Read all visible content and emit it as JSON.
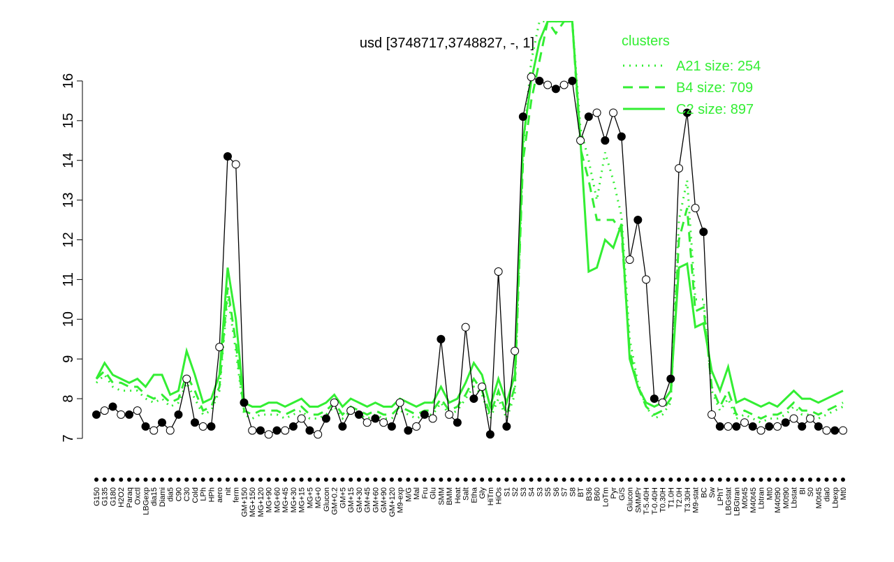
{
  "chart_data": {
    "type": "line",
    "title": "usd [3748717,3748827, -, 1]",
    "legend_title": "clusters",
    "legend_position": "top-right",
    "ylim": [
      6.95,
      17.5
    ],
    "yticks": [
      7,
      8,
      9,
      10,
      11,
      12,
      13,
      14,
      15,
      16
    ],
    "categories": [
      "G150",
      "G135",
      "G180",
      "H2O2",
      "Paraq",
      "Oxctl",
      "LBGexp",
      "dia15",
      "Diami",
      "dia5",
      "C90",
      "C30",
      "Cold",
      "LPh",
      "HPh",
      "aero",
      "nit",
      "ferm",
      "GM+150",
      "MG+150",
      "MG+120",
      "MG+90",
      "MG+60",
      "MG+45",
      "MG+30",
      "MG+15",
      "MG+5",
      "MG+0",
      "Glucon",
      "GM+0.2",
      "GM+5",
      "GM+15",
      "GM+30",
      "GM+45",
      "GM+60",
      "GM+90",
      "GM+120",
      "M9-exp",
      "M/G",
      "Mal",
      "Fru",
      "Glu",
      "SMM",
      "BMM",
      "Heat",
      "Salt",
      "Etha",
      "Gly",
      "HiTm",
      "HiOs",
      "S1",
      "S2",
      "S3",
      "S4",
      "S3",
      "S5",
      "S6",
      "S7",
      "S8",
      "BT",
      "B36",
      "B60",
      "LoTm",
      "Pyr",
      "G/S",
      "Glucon",
      "SMMPr",
      "T-5.40H",
      "T-0.40H",
      "T0.30H",
      "T1.0H",
      "T2.0H",
      "T3.30H",
      "M9-stat",
      "BC",
      "Sw",
      "LPhT",
      "LBGstat",
      "LBGtran",
      "M0t45",
      "M40t45",
      "Lbtran",
      "Mt0",
      "M40t90",
      "M0t90",
      "Lbstat",
      "BI",
      "S0",
      "M0t45",
      "dia0",
      "Lbexp",
      "Mt0"
    ],
    "values": [
      7.6,
      7.7,
      7.8,
      7.6,
      7.6,
      7.7,
      7.3,
      7.2,
      7.4,
      7.2,
      7.6,
      8.5,
      7.4,
      7.3,
      7.3,
      9.3,
      14.1,
      13.9,
      7.9,
      7.2,
      7.2,
      7.1,
      7.2,
      7.2,
      7.3,
      7.5,
      7.2,
      7.1,
      7.5,
      7.9,
      7.3,
      7.7,
      7.6,
      7.4,
      7.5,
      7.4,
      7.3,
      7.9,
      7.2,
      7.3,
      7.6,
      7.5,
      9.5,
      7.6,
      7.4,
      9.8,
      8.0,
      8.3,
      7.1,
      11.2,
      7.3,
      9.2,
      15.1,
      16.1,
      16.0,
      15.9,
      15.8,
      15.9,
      16.0,
      14.5,
      15.1,
      15.2,
      14.5,
      15.2,
      14.6,
      11.5,
      12.5,
      11.0,
      8.0,
      7.9,
      8.5,
      13.8,
      15.2,
      12.8,
      12.2,
      7.6,
      7.3,
      7.3,
      7.3,
      7.4,
      7.3,
      7.2,
      7.3,
      7.3,
      7.4,
      7.5,
      7.3,
      7.5,
      7.3,
      7.2,
      7.2,
      7.2
    ],
    "series": [
      {
        "name": "A21 size: 254",
        "color": "#33ee33",
        "style": "dotted",
        "values": [
          8.4,
          8.6,
          8.3,
          8.2,
          8.2,
          8.2,
          8.0,
          7.9,
          8.0,
          7.8,
          7.9,
          8.4,
          8.0,
          7.6,
          7.7,
          8.2,
          10.6,
          9.2,
          7.6,
          7.5,
          7.6,
          7.6,
          7.6,
          7.5,
          7.6,
          7.7,
          7.5,
          7.5,
          7.6,
          7.8,
          7.5,
          7.7,
          7.6,
          7.5,
          7.6,
          7.5,
          7.5,
          7.7,
          7.6,
          7.5,
          7.6,
          7.6,
          7.9,
          7.6,
          7.7,
          8.0,
          8.3,
          8.1,
          7.5,
          8.0,
          7.5,
          8.1,
          14.3,
          16.5,
          17.5,
          17.5,
          17.5,
          17.5,
          17.5,
          14.8,
          14.0,
          13.0,
          14.2,
          13.5,
          12.6,
          9.5,
          8.4,
          7.8,
          7.5,
          7.6,
          7.9,
          12.5,
          13.5,
          10.5,
          10.5,
          8.2,
          7.7,
          8.0,
          7.5,
          7.6,
          7.5,
          7.4,
          7.5,
          7.5,
          7.6,
          7.8,
          7.6,
          7.6,
          7.5,
          7.6,
          7.7,
          7.8
        ]
      },
      {
        "name": "B4 size: 709",
        "color": "#33ee33",
        "style": "dashed",
        "values": [
          8.5,
          8.7,
          8.4,
          8.4,
          8.3,
          8.3,
          8.1,
          8.0,
          8.1,
          7.9,
          8.0,
          8.6,
          8.2,
          7.7,
          7.8,
          8.3,
          10.8,
          9.4,
          7.7,
          7.6,
          7.7,
          7.7,
          7.7,
          7.6,
          7.7,
          7.8,
          7.6,
          7.6,
          7.7,
          7.9,
          7.6,
          7.8,
          7.7,
          7.6,
          7.7,
          7.6,
          7.6,
          7.8,
          7.7,
          7.6,
          7.7,
          7.7,
          8.0,
          7.7,
          7.8,
          8.1,
          8.5,
          8.2,
          7.6,
          8.2,
          7.6,
          8.3,
          14.0,
          15.5,
          16.5,
          17.5,
          17.2,
          17.5,
          17.5,
          14.3,
          13.5,
          12.5,
          12.5,
          12.5,
          12.2,
          9.2,
          8.3,
          7.8,
          7.6,
          7.7,
          8.0,
          12.0,
          12.8,
          10.2,
          10.3,
          8.3,
          7.8,
          8.2,
          7.6,
          7.7,
          7.6,
          7.5,
          7.6,
          7.6,
          7.7,
          7.9,
          7.7,
          7.7,
          7.6,
          7.7,
          7.8,
          7.9
        ]
      },
      {
        "name": "C2 size: 897",
        "color": "#33ee33",
        "style": "solid",
        "values": [
          8.5,
          8.9,
          8.6,
          8.5,
          8.4,
          8.5,
          8.3,
          8.6,
          8.6,
          8.1,
          8.2,
          9.2,
          8.6,
          7.9,
          8.0,
          8.6,
          11.3,
          10.0,
          7.9,
          7.8,
          7.8,
          7.9,
          7.9,
          7.8,
          7.9,
          8.0,
          7.8,
          7.8,
          7.9,
          8.1,
          7.8,
          8.0,
          7.9,
          7.8,
          7.9,
          7.8,
          7.8,
          8.0,
          7.9,
          7.8,
          7.9,
          7.9,
          8.3,
          7.9,
          8.0,
          8.4,
          8.9,
          8.6,
          7.8,
          8.5,
          7.9,
          8.6,
          14.5,
          16.0,
          17.0,
          17.5,
          17.5,
          17.5,
          17.5,
          14.5,
          11.2,
          11.3,
          12.0,
          11.8,
          12.4,
          9.0,
          8.3,
          7.9,
          7.8,
          7.9,
          8.2,
          11.3,
          11.4,
          9.8,
          9.9,
          8.7,
          8.2,
          8.8,
          7.9,
          8.0,
          7.9,
          7.8,
          7.9,
          7.8,
          8.0,
          8.2,
          8.0,
          8.0,
          7.9,
          8.0,
          8.1,
          8.2
        ]
      }
    ]
  }
}
